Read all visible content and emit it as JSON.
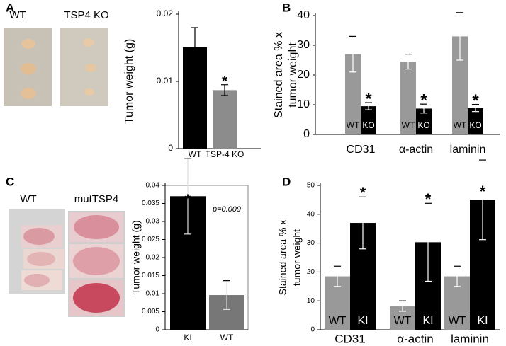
{
  "chart_data": [
    {
      "panel": "A",
      "type": "bar",
      "photo_labels": [
        "WT",
        "TSP4 KO"
      ],
      "ylabel": [
        "Tumor weight (g)"
      ],
      "categories": [
        "WT",
        "TSP-4 KO"
      ],
      "series": [
        {
          "name": "Tumor weight",
          "color": "#000000",
          "values": [
            0.0151,
            0.0087
          ],
          "errors": [
            0.0029,
            0.0008
          ],
          "significance": [
            null,
            "*"
          ]
        }
      ],
      "bar_colors": [
        "#000000",
        "#8c8c8c"
      ],
      "ylim": [
        0,
        0.02
      ],
      "yticks": [
        0,
        0.01,
        0.02
      ]
    },
    {
      "panel": "B",
      "type": "bar",
      "ylabel": [
        "Stained area % x",
        "tumor weight"
      ],
      "categories": [
        "CD31",
        "α-actin",
        "laminin"
      ],
      "series": [
        {
          "name": "WT",
          "color": "#999999",
          "values": [
            27,
            24.5,
            33
          ],
          "errors": [
            6,
            2.5,
            8
          ],
          "significance": [
            null,
            null,
            null
          ]
        },
        {
          "name": "KO",
          "color": "#000000",
          "values": [
            9.5,
            8.7,
            8.9
          ],
          "errors": [
            1.2,
            1.5,
            1.2
          ],
          "significance": [
            "*",
            "*",
            "*"
          ]
        }
      ],
      "ylim": [
        0,
        40
      ],
      "yticks": [
        0,
        10,
        20,
        30,
        40
      ]
    },
    {
      "panel": "C",
      "type": "bar",
      "photo_labels": [
        "WT",
        "mutTSP4"
      ],
      "ylabel": [
        "Tumor weight (g)"
      ],
      "categories": [
        "KI",
        "WT"
      ],
      "series": [
        {
          "name": "Tumor weight",
          "color": "#000000",
          "values": [
            0.037,
            0.0096
          ],
          "errors": [
            0.0105,
            0.004
          ],
          "significance": [
            "*",
            null
          ]
        }
      ],
      "bar_colors": [
        "#000000",
        "#777777"
      ],
      "annotation": "p=0.009",
      "ylim": [
        0,
        0.04
      ],
      "yticks": [
        0,
        0.005,
        0.01,
        0.015,
        0.02,
        0.025,
        0.03,
        0.035,
        0.04
      ]
    },
    {
      "panel": "D",
      "type": "bar",
      "ylabel": [
        "Stained area % x",
        "tumor weight"
      ],
      "categories": [
        "CD31",
        "α-actin",
        "laminin"
      ],
      "series": [
        {
          "name": "WT",
          "color": "#999999",
          "values": [
            18.5,
            8.2,
            18.5
          ],
          "errors": [
            3.5,
            1.8,
            3.5
          ],
          "significance": [
            null,
            null,
            null
          ]
        },
        {
          "name": "KI",
          "color": "#000000",
          "values": [
            37,
            30.3,
            45
          ],
          "errors": [
            9,
            13.5,
            13.8
          ],
          "significance": [
            "*",
            "*",
            "*"
          ]
        }
      ],
      "ylim": [
        0,
        50
      ],
      "yticks": [
        0,
        10,
        20,
        30,
        40,
        50
      ]
    }
  ]
}
